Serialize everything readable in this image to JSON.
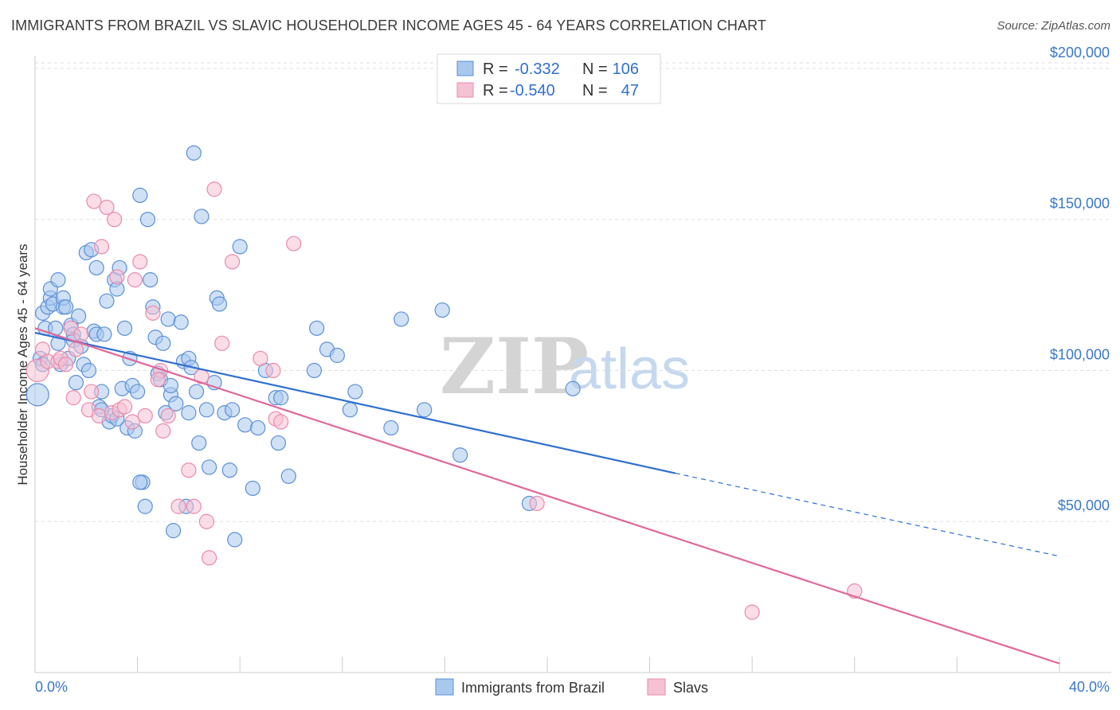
{
  "title": "IMMIGRANTS FROM BRAZIL VS SLAVIC HOUSEHOLDER INCOME AGES 45 - 64 YEARS CORRELATION CHART",
  "source": "Source: ZipAtlas.com",
  "watermark": {
    "zip": "ZIP",
    "atlas": "atlas"
  },
  "legend_top": {
    "rows": [
      {
        "r_label": "R =",
        "r_value": "-0.332",
        "n_label": "N =",
        "n_value": "106"
      },
      {
        "r_label": "R =",
        "r_value": "-0.540",
        "n_label": "N =",
        "n_value": "47"
      }
    ]
  },
  "legend_bottom": {
    "items": [
      "Immigrants from Brazil",
      "Slavs"
    ]
  },
  "colors": {
    "blue_fill": "#a9c8ee",
    "blue_stroke": "#5b8fd6",
    "blue_line": "#2f6fd0",
    "pink_fill": "#f6c1d3",
    "pink_stroke": "#e98aab",
    "pink_line": "#e0679a",
    "grid": "#dddddd",
    "tick_label": "#3a78c9"
  },
  "chart_data": {
    "type": "scatter",
    "title": "IMMIGRANTS FROM BRAZIL VS SLAVIC HOUSEHOLDER INCOME AGES 45 - 64 YEARS CORRELATION CHART",
    "xlabel": "",
    "ylabel": "Householder Income Ages 45 - 64 years",
    "xlim": [
      0,
      40
    ],
    "ylim": [
      0,
      210000
    ],
    "x_tick_labels": [
      "0.0%",
      "40.0%"
    ],
    "y_ticks": [
      50000,
      100000,
      150000,
      200000
    ],
    "y_tick_labels": [
      "$50,000",
      "$100,000",
      "$150,000",
      "$200,000"
    ],
    "grid": true,
    "series": [
      {
        "name": "Immigrants from Brazil",
        "r": -0.332,
        "n": 106,
        "trend": {
          "x0": 0,
          "y0": 112500,
          "x1": 25,
          "y1": 66000,
          "dashed_to_x": 40,
          "dashed_to_y": 38500
        },
        "points": [
          [
            0.1,
            92000
          ],
          [
            0.2,
            104000
          ],
          [
            0.3,
            102000
          ],
          [
            0.3,
            119000
          ],
          [
            0.4,
            114000
          ],
          [
            0.5,
            121000
          ],
          [
            0.6,
            124000
          ],
          [
            0.6,
            127000
          ],
          [
            0.7,
            122000
          ],
          [
            0.8,
            114000
          ],
          [
            0.9,
            109000
          ],
          [
            0.9,
            130000
          ],
          [
            1.0,
            102000
          ],
          [
            1.1,
            121000
          ],
          [
            1.1,
            124000
          ],
          [
            1.2,
            121000
          ],
          [
            1.3,
            104000
          ],
          [
            1.4,
            115000
          ],
          [
            1.5,
            112000
          ],
          [
            1.5,
            110000
          ],
          [
            1.6,
            96000
          ],
          [
            1.7,
            118000
          ],
          [
            1.8,
            108000
          ],
          [
            1.9,
            102000
          ],
          [
            2.0,
            139000
          ],
          [
            2.1,
            100000
          ],
          [
            2.2,
            140000
          ],
          [
            2.3,
            113000
          ],
          [
            2.4,
            134000
          ],
          [
            2.4,
            112000
          ],
          [
            2.5,
            88000
          ],
          [
            2.6,
            93000
          ],
          [
            2.7,
            112000
          ],
          [
            2.8,
            123000
          ],
          [
            2.9,
            83000
          ],
          [
            3.0,
            85000
          ],
          [
            3.1,
            130000
          ],
          [
            3.2,
            127000
          ],
          [
            3.3,
            134000
          ],
          [
            3.4,
            94000
          ],
          [
            3.5,
            114000
          ],
          [
            3.6,
            81000
          ],
          [
            3.7,
            104000
          ],
          [
            3.8,
            95000
          ],
          [
            3.9,
            80000
          ],
          [
            4.0,
            93000
          ],
          [
            4.1,
            158000
          ],
          [
            4.2,
            63000
          ],
          [
            4.3,
            55000
          ],
          [
            4.4,
            150000
          ],
          [
            4.5,
            130000
          ],
          [
            4.6,
            121000
          ],
          [
            4.7,
            111000
          ],
          [
            4.8,
            99000
          ],
          [
            4.9,
            97000
          ],
          [
            5.0,
            109000
          ],
          [
            5.1,
            86000
          ],
          [
            5.2,
            117000
          ],
          [
            5.3,
            92000
          ],
          [
            5.4,
            47000
          ],
          [
            5.5,
            89000
          ],
          [
            5.7,
            116000
          ],
          [
            5.8,
            103000
          ],
          [
            5.9,
            55000
          ],
          [
            6.0,
            104000
          ],
          [
            6.1,
            101000
          ],
          [
            6.2,
            172000
          ],
          [
            6.3,
            93000
          ],
          [
            6.4,
            76000
          ],
          [
            6.5,
            151000
          ],
          [
            6.7,
            87000
          ],
          [
            6.8,
            68000
          ],
          [
            7.0,
            96000
          ],
          [
            7.1,
            124000
          ],
          [
            7.2,
            122000
          ],
          [
            7.4,
            86000
          ],
          [
            7.6,
            67000
          ],
          [
            7.7,
            87000
          ],
          [
            7.8,
            44000
          ],
          [
            8.0,
            141000
          ],
          [
            8.2,
            82000
          ],
          [
            8.5,
            61000
          ],
          [
            8.7,
            81000
          ],
          [
            9.0,
            100000
          ],
          [
            9.4,
            91000
          ],
          [
            9.5,
            76000
          ],
          [
            9.6,
            91000
          ],
          [
            9.9,
            65000
          ],
          [
            10.9,
            100000
          ],
          [
            11.0,
            114000
          ],
          [
            11.4,
            107000
          ],
          [
            11.8,
            105000
          ],
          [
            12.3,
            87000
          ],
          [
            12.5,
            93000
          ],
          [
            13.9,
            81000
          ],
          [
            14.3,
            117000
          ],
          [
            15.2,
            87000
          ],
          [
            15.9,
            120000
          ],
          [
            16.6,
            72000
          ],
          [
            19.3,
            56000
          ],
          [
            21.0,
            94000
          ],
          [
            4.1,
            63000
          ],
          [
            2.6,
            87000
          ],
          [
            5.3,
            95000
          ],
          [
            3.2,
            84000
          ],
          [
            6.0,
            86000
          ]
        ]
      },
      {
        "name": "Slavs",
        "r": -0.54,
        "n": 47,
        "trend": {
          "x0": 0,
          "y0": 114000,
          "x1": 40,
          "y1": 3000
        },
        "points": [
          [
            0.1,
            100000
          ],
          [
            0.3,
            107000
          ],
          [
            0.5,
            103000
          ],
          [
            0.9,
            103000
          ],
          [
            1.0,
            104000
          ],
          [
            1.2,
            102000
          ],
          [
            1.4,
            114000
          ],
          [
            1.6,
            107000
          ],
          [
            1.8,
            112000
          ],
          [
            2.1,
            87000
          ],
          [
            2.2,
            93000
          ],
          [
            2.3,
            156000
          ],
          [
            2.5,
            85000
          ],
          [
            2.6,
            141000
          ],
          [
            2.8,
            154000
          ],
          [
            3.0,
            86000
          ],
          [
            3.1,
            150000
          ],
          [
            3.2,
            131000
          ],
          [
            3.3,
            87000
          ],
          [
            3.5,
            88000
          ],
          [
            3.8,
            83000
          ],
          [
            3.9,
            130000
          ],
          [
            4.1,
            136000
          ],
          [
            4.3,
            85000
          ],
          [
            4.6,
            119000
          ],
          [
            4.9,
            100000
          ],
          [
            5.0,
            80000
          ],
          [
            5.2,
            85000
          ],
          [
            5.6,
            55000
          ],
          [
            6.0,
            67000
          ],
          [
            6.2,
            55000
          ],
          [
            6.5,
            98000
          ],
          [
            6.7,
            50000
          ],
          [
            6.8,
            38000
          ],
          [
            7.0,
            160000
          ],
          [
            7.3,
            109000
          ],
          [
            7.7,
            136000
          ],
          [
            8.8,
            104000
          ],
          [
            9.3,
            100000
          ],
          [
            9.4,
            84000
          ],
          [
            9.6,
            83000
          ],
          [
            10.1,
            142000
          ],
          [
            19.6,
            56000
          ],
          [
            32.0,
            27000
          ],
          [
            28.0,
            20000
          ],
          [
            1.5,
            91000
          ],
          [
            4.8,
            97000
          ]
        ]
      }
    ]
  }
}
